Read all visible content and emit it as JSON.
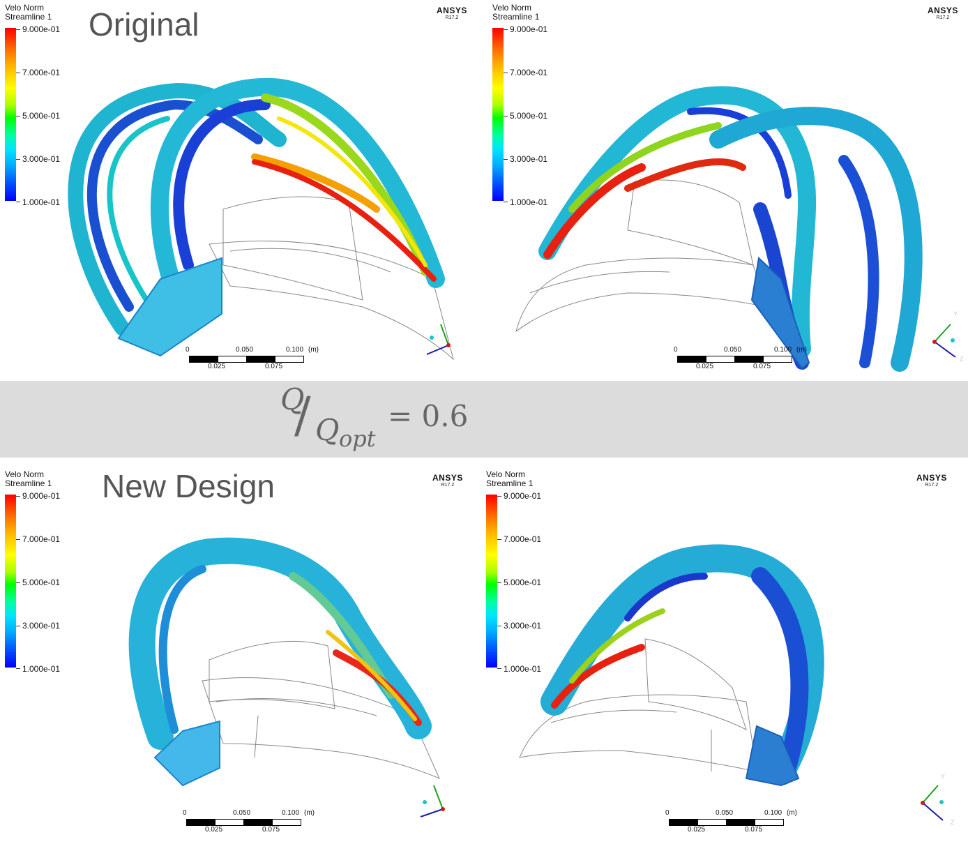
{
  "panels": [
    {
      "legend": {
        "title": "Velo Norm",
        "subtitle": "Streamline 1",
        "ticks": [
          "9.000e-01",
          "7.000e-01",
          "5.000e-01",
          "3.000e-01",
          "1.000e-01"
        ]
      },
      "heading": "Original",
      "brand": {
        "name": "ANSYS",
        "version": "R17.2"
      },
      "scale": {
        "top": [
          "0",
          "0.050",
          "0.100",
          "(m)"
        ],
        "bottom": [
          "0.025",
          "0.075"
        ]
      }
    },
    {
      "legend": {
        "title": "Velo Norm",
        "subtitle": "Streamline 1",
        "ticks": [
          "9.000e-01",
          "7.000e-01",
          "5.000e-01",
          "3.000e-01",
          "1.000e-01"
        ]
      },
      "heading": "",
      "brand": {
        "name": "ANSYS",
        "version": "R17.2"
      },
      "scale": {
        "top": [
          "0",
          "0.050",
          "0.100",
          "(m)"
        ],
        "bottom": [
          "0.025",
          "0.075"
        ]
      }
    },
    {
      "legend": {
        "title": "Velo Norm",
        "subtitle": "Streamline 1",
        "ticks": [
          "9.000e-01",
          "7.000e-01",
          "5.000e-01",
          "3.000e-01",
          "1.000e-01"
        ]
      },
      "heading": "New Design",
      "brand": {
        "name": "ANSYS",
        "version": "R17.2"
      },
      "scale": {
        "top": [
          "0",
          "0.050",
          "0.100",
          "(m)"
        ],
        "bottom": [
          "0.025",
          "0.075"
        ]
      }
    },
    {
      "legend": {
        "title": "Velo Norm",
        "subtitle": "Streamline 1",
        "ticks": [
          "9.000e-01",
          "7.000e-01",
          "5.000e-01",
          "3.000e-01",
          "1.000e-01"
        ]
      },
      "heading": "",
      "brand": {
        "name": "ANSYS",
        "version": "R17.2"
      },
      "scale": {
        "top": [
          "0",
          "0.050",
          "0.100",
          "(m)"
        ],
        "bottom": [
          "0.025",
          "0.075"
        ]
      }
    }
  ],
  "formula": {
    "numerator": "Q",
    "denominator": "Q",
    "subscript": "opt",
    "equals": "= 0.6"
  },
  "axes": {
    "y": "Y",
    "z": "Z"
  },
  "colors": {
    "band": "#dcdcdc",
    "title": "#555555"
  }
}
